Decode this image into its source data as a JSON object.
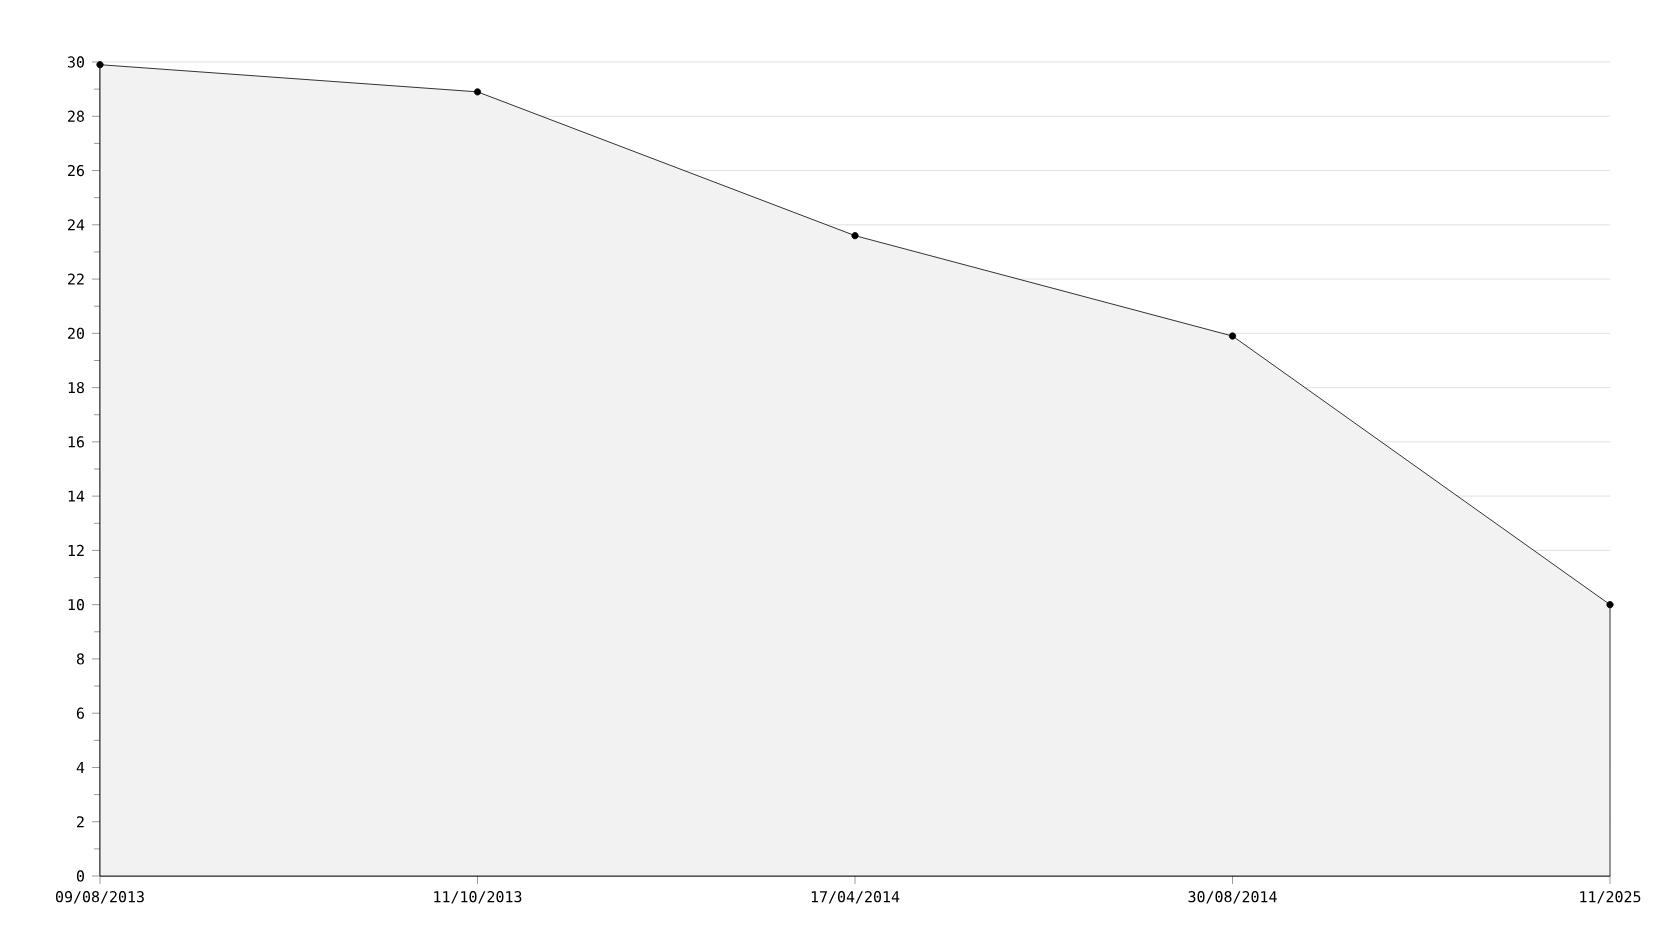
{
  "chart_data": {
    "type": "area",
    "categories": [
      "09/08/2013",
      "11/10/2013",
      "17/04/2014",
      "30/08/2014",
      "11/2025"
    ],
    "values": [
      29.9,
      28.9,
      23.6,
      19.9,
      10
    ],
    "color": "#f2f2f2",
    "ylim": [
      0,
      30
    ],
    "yticks": [
      0,
      2,
      4,
      6,
      8,
      10,
      12,
      14,
      16,
      18,
      20,
      22,
      24,
      26,
      28,
      30
    ],
    "grid": "y",
    "marker": "circle",
    "line_style": "solid"
  }
}
